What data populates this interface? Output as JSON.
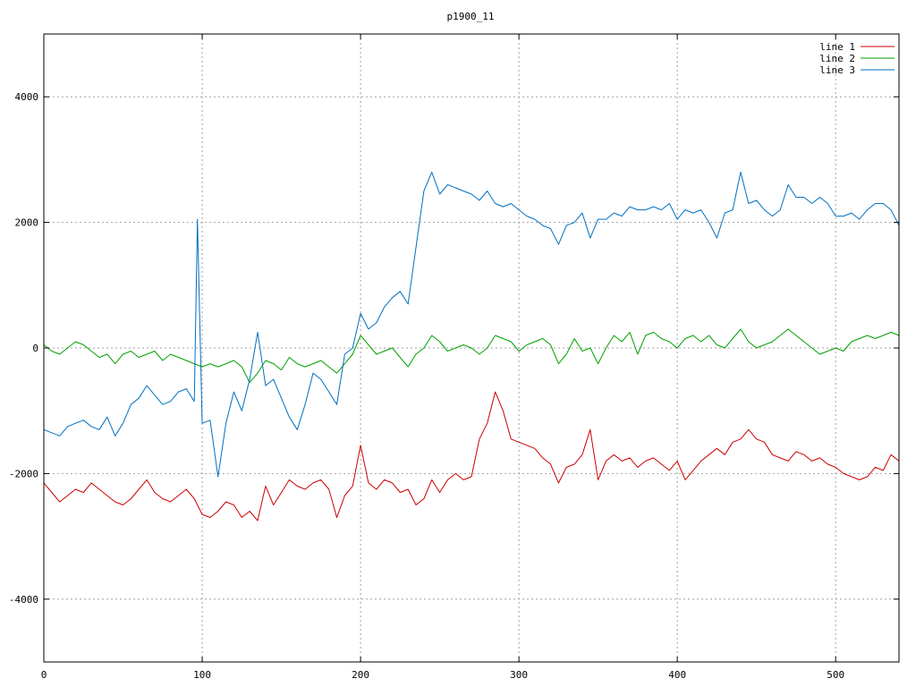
{
  "chart_data": {
    "type": "line",
    "title": "p1900_11",
    "xlabel": "",
    "ylabel": "",
    "xlim": [
      0,
      540
    ],
    "ylim": [
      -5000,
      5000
    ],
    "x_ticks": [
      0,
      100,
      200,
      300,
      400,
      500
    ],
    "y_ticks": [
      -4000,
      -2000,
      0,
      2000,
      4000
    ],
    "x_tick_labels": [
      "0",
      "100",
      "200",
      "300",
      "400",
      "500"
    ],
    "y_tick_labels": [
      "-4000",
      "-2000",
      "0",
      "2000",
      "4000"
    ],
    "grid": true,
    "legend_position": "top-right",
    "series": [
      {
        "name": "line 1",
        "color": "#cc0000",
        "x": [
          0,
          5,
          10,
          15,
          20,
          25,
          30,
          35,
          40,
          45,
          50,
          55,
          60,
          65,
          70,
          75,
          80,
          85,
          90,
          95,
          100,
          105,
          110,
          115,
          120,
          125,
          130,
          135,
          140,
          145,
          150,
          155,
          160,
          165,
          170,
          175,
          180,
          185,
          190,
          195,
          200,
          205,
          210,
          215,
          220,
          225,
          230,
          235,
          240,
          245,
          250,
          255,
          260,
          265,
          270,
          275,
          280,
          285,
          290,
          295,
          300,
          305,
          310,
          315,
          320,
          325,
          330,
          335,
          340,
          345,
          350,
          355,
          360,
          365,
          370,
          375,
          380,
          385,
          390,
          395,
          400,
          405,
          410,
          415,
          420,
          425,
          430,
          435,
          440,
          445,
          450,
          455,
          460,
          465,
          470,
          475,
          480,
          485,
          490,
          495,
          500,
          505,
          510,
          515,
          520,
          525,
          530,
          535,
          540
        ],
        "values": [
          -2150,
          -2300,
          -2450,
          -2350,
          -2250,
          -2300,
          -2150,
          -2250,
          -2350,
          -2450,
          -2500,
          -2400,
          -2250,
          -2100,
          -2300,
          -2400,
          -2450,
          -2350,
          -2250,
          -2400,
          -2650,
          -2700,
          -2600,
          -2450,
          -2500,
          -2700,
          -2600,
          -2750,
          -2200,
          -2500,
          -2300,
          -2100,
          -2200,
          -2250,
          -2150,
          -2100,
          -2250,
          -2700,
          -2350,
          -2200,
          -1550,
          -2150,
          -2250,
          -2100,
          -2150,
          -2300,
          -2250,
          -2500,
          -2400,
          -2100,
          -2300,
          -2100,
          -2000,
          -2100,
          -2050,
          -1450,
          -1200,
          -700,
          -1000,
          -1450,
          -1500,
          -1550,
          -1600,
          -1750,
          -1850,
          -2150,
          -1900,
          -1850,
          -1700,
          -1300,
          -2100,
          -1800,
          -1700,
          -1800,
          -1750,
          -1900,
          -1800,
          -1750,
          -1850,
          -1950,
          -1800,
          -2100,
          -1950,
          -1800,
          -1700,
          -1600,
          -1700,
          -1500,
          -1450,
          -1300,
          -1450,
          -1500,
          -1700,
          -1750,
          -1800,
          -1650,
          -1700,
          -1800,
          -1750,
          -1850,
          -1900,
          -2000,
          -2050,
          -2100,
          -2050,
          -1900,
          -1950,
          -1700,
          -1800
        ],
        "line_style": "solid"
      },
      {
        "name": "line 2",
        "color": "#00a000",
        "x": [
          0,
          5,
          10,
          15,
          20,
          25,
          30,
          35,
          40,
          45,
          50,
          55,
          60,
          65,
          70,
          75,
          80,
          85,
          90,
          95,
          100,
          105,
          110,
          115,
          120,
          125,
          130,
          135,
          140,
          145,
          150,
          155,
          160,
          165,
          170,
          175,
          180,
          185,
          190,
          195,
          200,
          205,
          210,
          215,
          220,
          225,
          230,
          235,
          240,
          245,
          250,
          255,
          260,
          265,
          270,
          275,
          280,
          285,
          290,
          295,
          300,
          305,
          310,
          315,
          320,
          325,
          330,
          335,
          340,
          345,
          350,
          355,
          360,
          365,
          370,
          375,
          380,
          385,
          390,
          395,
          400,
          405,
          410,
          415,
          420,
          425,
          430,
          435,
          440,
          445,
          450,
          455,
          460,
          465,
          470,
          475,
          480,
          485,
          490,
          495,
          500,
          505,
          510,
          515,
          520,
          525,
          530,
          535,
          540
        ],
        "values": [
          50,
          -50,
          -100,
          0,
          100,
          50,
          -50,
          -150,
          -100,
          -250,
          -100,
          -50,
          -150,
          -100,
          -50,
          -200,
          -100,
          -150,
          -200,
          -250,
          -300,
          -250,
          -300,
          -250,
          -200,
          -300,
          -550,
          -400,
          -200,
          -250,
          -350,
          -150,
          -250,
          -300,
          -250,
          -200,
          -300,
          -400,
          -250,
          -100,
          200,
          50,
          -100,
          -50,
          0,
          -150,
          -300,
          -100,
          0,
          200,
          100,
          -50,
          0,
          50,
          0,
          -100,
          0,
          200,
          150,
          100,
          -50,
          50,
          100,
          150,
          50,
          -250,
          -100,
          150,
          -50,
          0,
          -250,
          0,
          200,
          100,
          250,
          -100,
          200,
          250,
          150,
          100,
          0,
          150,
          200,
          100,
          200,
          50,
          0,
          150,
          300,
          100,
          0,
          50,
          100,
          200,
          300,
          200,
          100,
          0,
          -100,
          -50,
          0,
          -50,
          100,
          150,
          200,
          150,
          200,
          250,
          200
        ],
        "line_style": "solid"
      },
      {
        "name": "line 3",
        "color": "#0070c0",
        "x": [
          0,
          5,
          10,
          15,
          20,
          25,
          30,
          35,
          40,
          45,
          50,
          55,
          60,
          65,
          70,
          75,
          80,
          85,
          90,
          95,
          97,
          100,
          105,
          110,
          115,
          120,
          125,
          130,
          135,
          140,
          145,
          150,
          155,
          160,
          165,
          170,
          175,
          180,
          185,
          190,
          195,
          200,
          205,
          210,
          215,
          220,
          225,
          230,
          235,
          240,
          245,
          250,
          255,
          260,
          265,
          270,
          275,
          280,
          285,
          290,
          295,
          300,
          305,
          310,
          315,
          320,
          325,
          330,
          335,
          340,
          345,
          350,
          355,
          360,
          365,
          370,
          375,
          380,
          385,
          390,
          395,
          400,
          405,
          410,
          415,
          420,
          425,
          430,
          435,
          440,
          445,
          450,
          455,
          460,
          465,
          470,
          475,
          480,
          485,
          490,
          495,
          500,
          505,
          510,
          515,
          520,
          525,
          530,
          535,
          540
        ],
        "values": [
          -1300,
          -1350,
          -1400,
          -1250,
          -1200,
          -1150,
          -1250,
          -1300,
          -1100,
          -1400,
          -1200,
          -900,
          -800,
          -600,
          -750,
          -900,
          -850,
          -700,
          -650,
          -850,
          2050,
          -1200,
          -1150,
          -2050,
          -1200,
          -700,
          -1000,
          -500,
          250,
          -600,
          -500,
          -800,
          -1100,
          -1300,
          -900,
          -400,
          -500,
          -700,
          -900,
          -100,
          0,
          550,
          300,
          400,
          650,
          800,
          900,
          700,
          1600,
          2500,
          2800,
          2450,
          2600,
          2550,
          2500,
          2450,
          2350,
          2500,
          2300,
          2250,
          2300,
          2200,
          2100,
          2050,
          1950,
          1900,
          1650,
          1950,
          2000,
          2150,
          1750,
          2050,
          2050,
          2150,
          2100,
          2250,
          2200,
          2200,
          2250,
          2200,
          2300,
          2050,
          2200,
          2150,
          2200,
          2000,
          1750,
          2150,
          2200,
          2800,
          2300,
          2350,
          2200,
          2100,
          2200,
          2600,
          2400,
          2400,
          2300,
          2400,
          2300,
          2100,
          2100,
          2150,
          2050,
          2200,
          2300,
          2300,
          2200,
          1950
        ],
        "line_style": "solid"
      }
    ]
  }
}
